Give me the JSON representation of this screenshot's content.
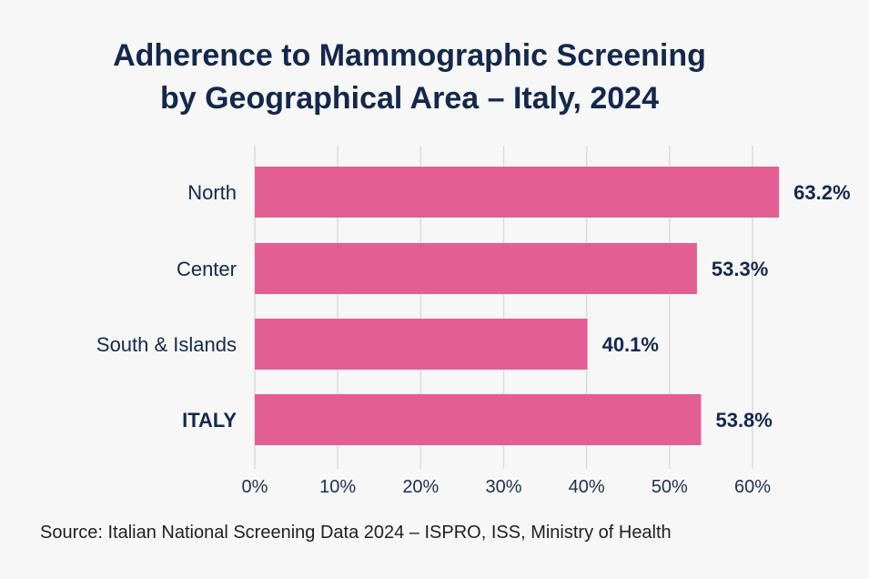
{
  "chart_data": {
    "type": "bar",
    "orientation": "horizontal",
    "title": "Adherence to Mammographic Screening",
    "title_line2": "by Geographical Area – Italy, 2024",
    "categories": [
      "North",
      "Center",
      "South & Islands",
      "ITALY"
    ],
    "values": [
      63.2,
      53.3,
      40.1,
      53.8
    ],
    "value_labels": [
      "63.2%",
      "53.3%",
      "40.1%",
      "53.8%"
    ],
    "emphasized_category": "ITALY",
    "x_ticks": [
      "0%",
      "10%",
      "20%",
      "30%",
      "40%",
      "50%",
      "60%"
    ],
    "xlim": [
      0,
      60
    ],
    "grid": true,
    "xlabel": "",
    "ylabel": "",
    "bar_color": "#e35f93",
    "source": "Source: Italian National Screening Data 2024 – ISPRO, ISS, Ministry of Health"
  }
}
